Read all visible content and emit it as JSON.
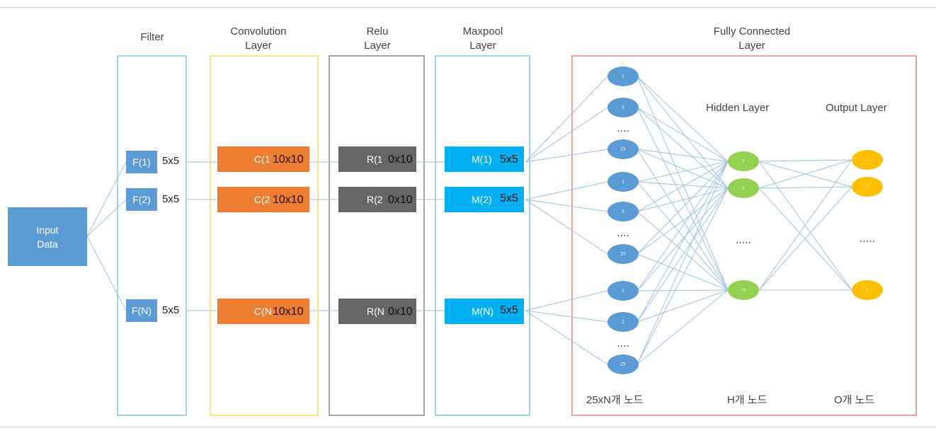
{
  "headers": {
    "filter": "Filter",
    "conv": [
      "Convolution",
      "Layer"
    ],
    "relu": [
      "Relu",
      "Layer"
    ],
    "maxpool": [
      "Maxpool",
      "Layer"
    ],
    "fc": [
      "Fully Connected",
      "Layer"
    ]
  },
  "input_box": [
    "Input",
    "Data"
  ],
  "rows": [
    {
      "filter": "F(1)",
      "filter_size": "5x5",
      "conv": "C(1",
      "conv_size": "10x10",
      "relu": "R(1",
      "relu_size": "0x10",
      "pool": "M(1)",
      "pool_size": "5x5"
    },
    {
      "filter": "F(2)",
      "filter_size": "5x5",
      "conv": "C(2",
      "conv_size": "10x10",
      "relu": "R(2",
      "relu_size": "0x10",
      "pool": "M(2)",
      "pool_size": "5x5"
    },
    {
      "filter": "F(N)",
      "filter_size": "5x5",
      "conv": "C(N",
      "conv_size": "10x10",
      "relu": "R(N",
      "relu_size": "0x10",
      "pool": "M(N)",
      "pool_size": "5x5"
    }
  ],
  "fc": {
    "hidden_title": "Hidden Layer",
    "output_title": "Output Layer",
    "input_nodes_caption": "25xN개 노드",
    "hidden_nodes_caption": "H개 노드",
    "output_nodes_caption": "O개 노드",
    "input_node_labels": [
      "1",
      "2",
      "25"
    ],
    "hidden_node_labels": [
      "1",
      "2",
      "H"
    ],
    "output_node_labels": [
      "1",
      "2",
      "O"
    ],
    "ellipsis_small": "....",
    "ellipsis": "....."
  },
  "colors": {
    "input": "#5b9bd5",
    "filter": "#5b9bd5",
    "conv": "#ed7d31",
    "relu": "#666666",
    "pool": "#00b0f0",
    "node_in": "#5b9bd5",
    "node_hidden": "#92d050",
    "node_out": "#ffc000",
    "line": "#9dc3e6",
    "frame_filter": "#9dd7f3",
    "frame_conv": "#ffe08a",
    "frame_relu": "#a6a6a6",
    "frame_pool": "#9dd7f3",
    "frame_fc": "#f0a0a0"
  }
}
